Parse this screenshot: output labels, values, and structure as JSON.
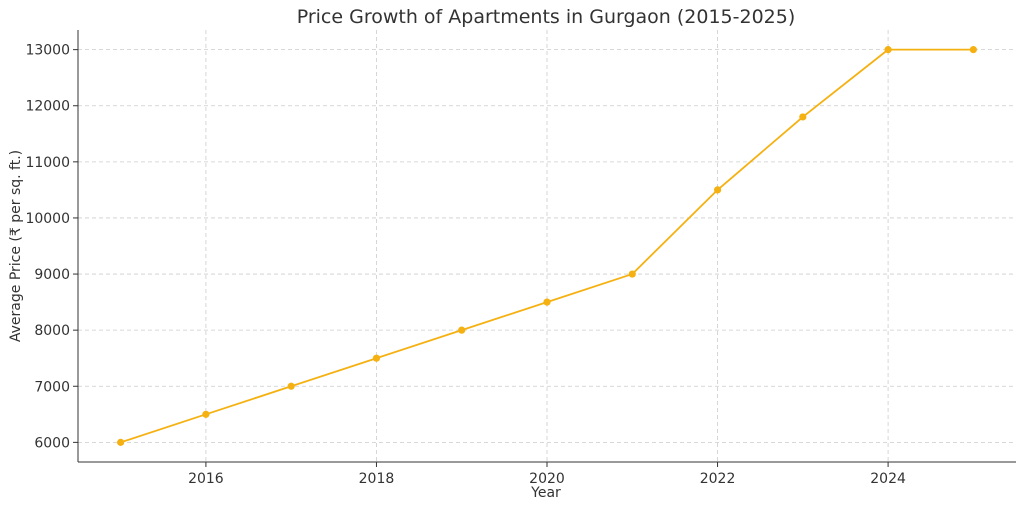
{
  "chart_data": {
    "type": "line",
    "title": "Price Growth of Apartments in Gurgaon (2015-2025)",
    "xlabel": "Year",
    "ylabel": "Average Price (₹ per sq. ft.)",
    "x": [
      2015,
      2016,
      2017,
      2018,
      2019,
      2020,
      2021,
      2022,
      2023,
      2024,
      2025
    ],
    "series": [
      {
        "values": [
          6000,
          6500,
          7000,
          7500,
          8000,
          8500,
          9000,
          10500,
          11800,
          13000,
          13000
        ],
        "color": "#f5b111"
      }
    ],
    "xlim": [
      2014.5,
      2025.5
    ],
    "ylim": [
      5650,
      13350
    ],
    "xticks": [
      2016,
      2018,
      2020,
      2022,
      2024
    ],
    "yticks": [
      6000,
      7000,
      8000,
      9000,
      10000,
      11000,
      12000,
      13000
    ],
    "grid": true,
    "grid_style": "dashed",
    "legend": "none",
    "spines": "left-bottom"
  }
}
